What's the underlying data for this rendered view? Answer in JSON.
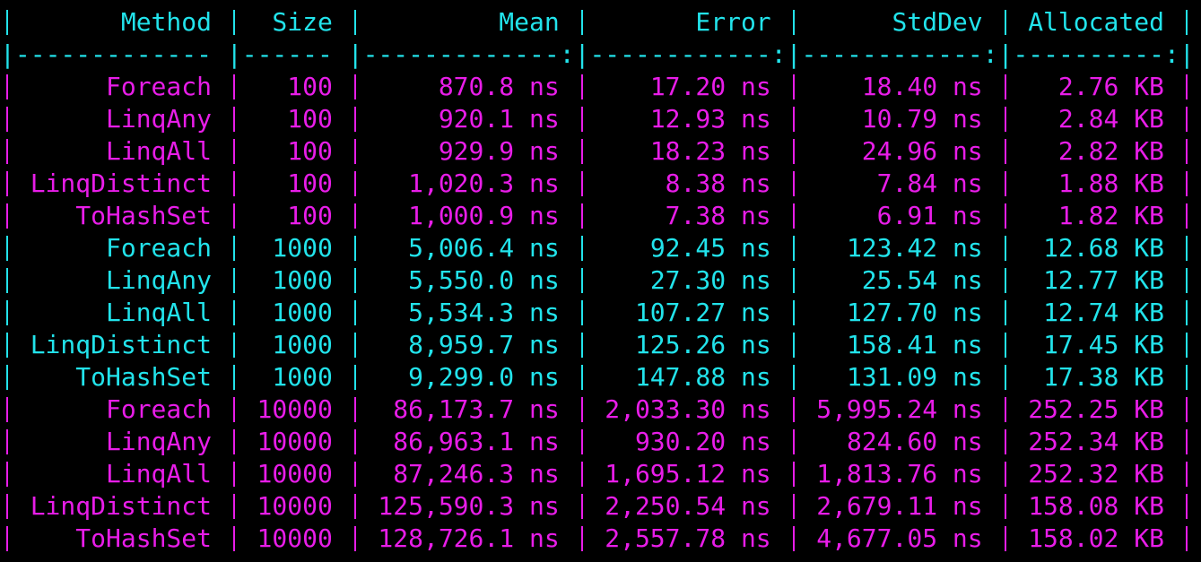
{
  "table": {
    "header": [
      "Method",
      "Size",
      "Mean",
      "Error",
      "StdDev",
      "Allocated"
    ],
    "separator": "|------------- |------ |-------------:|------------:|------------:|----------:|",
    "rows": [
      [
        "Foreach",
        "100",
        "870.8 ns",
        "17.20 ns",
        "18.40 ns",
        "2.76 KB"
      ],
      [
        "LinqAny",
        "100",
        "920.1 ns",
        "12.93 ns",
        "10.79 ns",
        "2.84 KB"
      ],
      [
        "LinqAll",
        "100",
        "929.9 ns",
        "18.23 ns",
        "24.96 ns",
        "2.82 KB"
      ],
      [
        "LinqDistinct",
        "100",
        "1,020.3 ns",
        "8.38 ns",
        "7.84 ns",
        "1.88 KB"
      ],
      [
        "ToHashSet",
        "100",
        "1,000.9 ns",
        "7.38 ns",
        "6.91 ns",
        "1.82 KB"
      ],
      [
        "Foreach",
        "1000",
        "5,006.4 ns",
        "92.45 ns",
        "123.42 ns",
        "12.68 KB"
      ],
      [
        "LinqAny",
        "1000",
        "5,550.0 ns",
        "27.30 ns",
        "25.54 ns",
        "12.77 KB"
      ],
      [
        "LinqAll",
        "1000",
        "5,534.3 ns",
        "107.27 ns",
        "127.70 ns",
        "12.74 KB"
      ],
      [
        "LinqDistinct",
        "1000",
        "8,959.7 ns",
        "125.26 ns",
        "158.41 ns",
        "17.45 KB"
      ],
      [
        "ToHashSet",
        "1000",
        "9,299.0 ns",
        "147.88 ns",
        "131.09 ns",
        "17.38 KB"
      ],
      [
        "Foreach",
        "10000",
        "86,173.7 ns",
        "2,033.30 ns",
        "5,995.24 ns",
        "252.25 KB"
      ],
      [
        "LinqAny",
        "10000",
        "86,963.1 ns",
        "930.20 ns",
        "824.60 ns",
        "252.34 KB"
      ],
      [
        "LinqAll",
        "10000",
        "87,246.3 ns",
        "1,695.12 ns",
        "1,813.76 ns",
        "252.32 KB"
      ],
      [
        "LinqDistinct",
        "10000",
        "125,590.3 ns",
        "2,250.54 ns",
        "2,679.11 ns",
        "158.08 KB"
      ],
      [
        "ToHashSet",
        "10000",
        "128,726.1 ns",
        "2,557.78 ns",
        "4,677.05 ns",
        "158.02 KB"
      ]
    ]
  }
}
